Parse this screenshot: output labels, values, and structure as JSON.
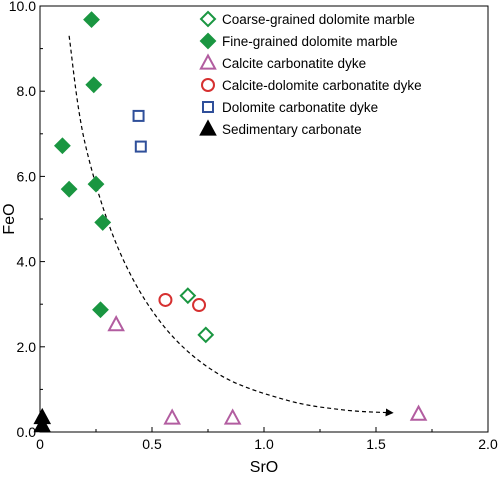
{
  "chart_data": {
    "type": "scatter",
    "xlabel": "SrO",
    "ylabel": "FeO",
    "xlim": [
      0,
      2.0
    ],
    "ylim": [
      0,
      10.0
    ],
    "x_ticks": [
      0,
      0.5,
      1.0,
      1.5,
      2.0
    ],
    "x_tick_labels": [
      "0",
      "0.5",
      "1.0",
      "1.5",
      "2.0"
    ],
    "y_ticks": [
      0,
      2.0,
      4.0,
      6.0,
      8.0,
      10.0
    ],
    "y_tick_labels": [
      "0.0",
      "2.0",
      "4.0",
      "6.0",
      "8.0",
      "10.0"
    ],
    "grid": false,
    "legend_position": "top-right",
    "series": [
      {
        "name": "Coarse-grained dolomite  marble",
        "marker": "diamond-open",
        "color": "#1a9641",
        "points": [
          [
            0.66,
            3.2
          ],
          [
            0.74,
            2.28
          ]
        ]
      },
      {
        "name": "Fine-grained dolomite  marble",
        "marker": "diamond-filled",
        "color": "#1a9641",
        "points": [
          [
            0.23,
            9.68
          ],
          [
            0.24,
            8.15
          ],
          [
            0.1,
            6.72
          ],
          [
            0.13,
            5.7
          ],
          [
            0.25,
            5.82
          ],
          [
            0.28,
            4.92
          ],
          [
            0.27,
            2.87
          ]
        ]
      },
      {
        "name": "Calcite carbonatite dyke",
        "marker": "triangle-open",
        "color": "#b25da0",
        "points": [
          [
            0.34,
            2.52
          ],
          [
            0.59,
            0.33
          ],
          [
            0.86,
            0.33
          ],
          [
            1.69,
            0.42
          ]
        ]
      },
      {
        "name": "Calcite-dolomite carbonatite dyke",
        "marker": "circle-open",
        "color": "#d63030",
        "points": [
          [
            0.56,
            3.1
          ],
          [
            0.71,
            2.98
          ]
        ]
      },
      {
        "name": "Dolomite carbonatite dyke",
        "marker": "square-open",
        "color": "#2f4f9a",
        "points": [
          [
            0.44,
            7.42
          ],
          [
            0.45,
            6.7
          ]
        ]
      },
      {
        "name": "Sedimentary carbonate",
        "marker": "triangle-filled",
        "color": "#000000",
        "points": [
          [
            0.01,
            0.34
          ],
          [
            0.01,
            0.15
          ]
        ]
      }
    ],
    "trend_arrow": [
      [
        0.13,
        9.3
      ],
      [
        0.2,
        6.8
      ],
      [
        0.35,
        4.3
      ],
      [
        0.55,
        2.5
      ],
      [
        0.8,
        1.35
      ],
      [
        1.1,
        0.75
      ],
      [
        1.35,
        0.52
      ],
      [
        1.57,
        0.45
      ]
    ]
  }
}
